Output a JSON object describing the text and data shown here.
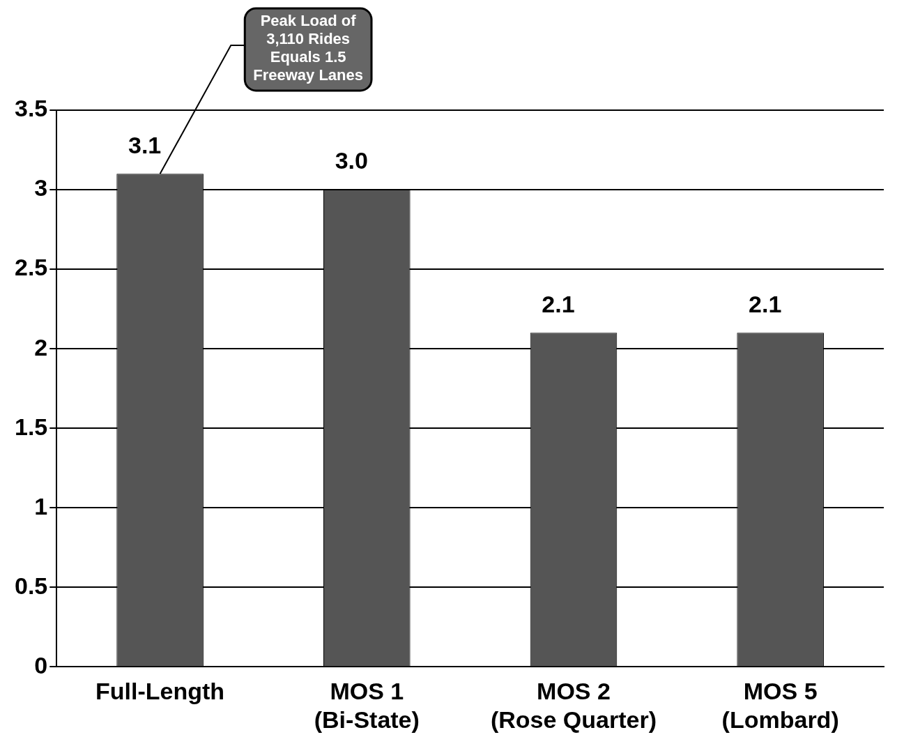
{
  "chart_data": {
    "type": "bar",
    "categories": [
      "Full-Length",
      "MOS 1\n(Bi-State)",
      "MOS 2\n(Rose Quarter)",
      "MOS 5\n(Lombard)"
    ],
    "values": [
      3.1,
      3.0,
      2.1,
      2.1
    ],
    "value_labels": [
      "3.1",
      "3.0",
      "2.1",
      "2.1"
    ],
    "color": "#555555",
    "ylim": [
      0,
      3.5
    ],
    "yticks": [
      0,
      0.5,
      1,
      1.5,
      2,
      2.5,
      3,
      3.5
    ],
    "grid": "y",
    "annotations": [
      {
        "text": "Peak Load of\n3,110 Rides\nEquals 1.5\nFreeway Lanes",
        "x": "Full-Length",
        "y": 3.1
      }
    ]
  }
}
